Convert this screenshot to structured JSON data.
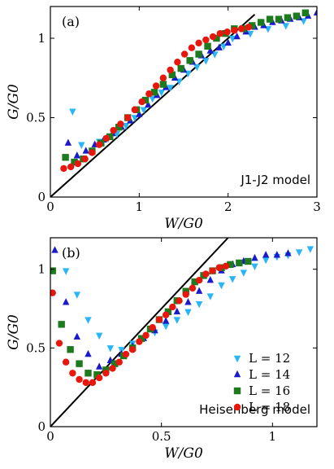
{
  "colors": {
    "L12": "#29b6f6",
    "L14": "#1a1acd",
    "L16": "#1d7a1d",
    "L18": "#e8160c",
    "reference_line": "#000000"
  },
  "legend": {
    "placement": "right, lower half of panel (b)",
    "entries": [
      {
        "key": "L12",
        "marker": "triangle-down",
        "label": "L = 12"
      },
      {
        "key": "L14",
        "marker": "triangle-up",
        "label": "L = 14"
      },
      {
        "key": "L16",
        "marker": "square",
        "label": "L = 16"
      },
      {
        "key": "L18",
        "marker": "circle",
        "label": "L = 18"
      }
    ]
  },
  "chart_data": [
    {
      "type": "scatter",
      "panel_label": "(a)",
      "model_label": "J1-J2 model",
      "xlabel": "W/G0",
      "ylabel": "G/G0",
      "xlim": [
        0,
        3
      ],
      "ylim": [
        0,
        1.2
      ],
      "xticks": [
        "0",
        "1",
        "2",
        "3"
      ],
      "yticks": [
        "0",
        "0.5",
        "1"
      ],
      "xtick_values": [
        0,
        1,
        2,
        3
      ],
      "ytick_values": [
        0,
        0.5,
        1
      ],
      "grid": false,
      "reference_line": {
        "x": [
          0,
          2.3
        ],
        "y": [
          0,
          1.15
        ]
      },
      "series": [
        {
          "key": "L12",
          "marker": "triangle-down",
          "x": [
            0.25,
            0.35,
            0.55,
            0.65,
            0.75,
            0.85,
            0.95,
            1.05,
            1.15,
            1.25,
            1.35,
            1.45,
            1.55,
            1.65,
            1.75,
            1.85,
            1.95,
            2.05,
            2.25,
            2.45,
            2.65,
            2.85
          ],
          "y": [
            0.54,
            0.33,
            0.35,
            0.37,
            0.4,
            0.45,
            0.5,
            0.55,
            0.62,
            0.66,
            0.69,
            0.73,
            0.78,
            0.82,
            0.86,
            0.9,
            0.95,
            1.0,
            1.03,
            1.06,
            1.08,
            1.11
          ]
        },
        {
          "key": "L14",
          "marker": "triangle-up",
          "x": [
            0.2,
            0.3,
            0.4,
            0.5,
            0.6,
            0.7,
            0.8,
            0.9,
            1.0,
            1.1,
            1.2,
            1.3,
            1.4,
            1.5,
            1.6,
            1.7,
            1.8,
            1.9,
            2.0,
            2.1,
            2.2,
            2.3,
            2.4,
            2.5,
            2.6,
            2.7,
            2.8,
            2.9,
            3.0
          ],
          "y": [
            0.34,
            0.26,
            0.29,
            0.33,
            0.36,
            0.4,
            0.44,
            0.48,
            0.52,
            0.58,
            0.64,
            0.69,
            0.75,
            0.8,
            0.85,
            0.89,
            0.92,
            0.94,
            0.97,
            1.01,
            1.04,
            1.07,
            1.08,
            1.1,
            1.11,
            1.12,
            1.13,
            1.14,
            1.16
          ]
        },
        {
          "key": "L16",
          "marker": "square",
          "x": [
            0.17,
            0.27,
            0.37,
            0.47,
            0.57,
            0.67,
            0.77,
            0.87,
            0.97,
            1.07,
            1.17,
            1.27,
            1.37,
            1.47,
            1.57,
            1.67,
            1.77,
            1.87,
            1.97,
            2.07,
            2.17,
            2.27,
            2.37,
            2.47,
            2.57,
            2.67,
            2.77,
            2.87
          ],
          "y": [
            0.25,
            0.22,
            0.24,
            0.29,
            0.34,
            0.38,
            0.44,
            0.5,
            0.55,
            0.61,
            0.66,
            0.71,
            0.77,
            0.81,
            0.86,
            0.9,
            0.95,
            1.0,
            1.03,
            1.06,
            1.06,
            1.08,
            1.1,
            1.12,
            1.12,
            1.13,
            1.14,
            1.16
          ]
        },
        {
          "key": "L18",
          "marker": "circle",
          "x": [
            0.15,
            0.23,
            0.31,
            0.39,
            0.47,
            0.55,
            0.63,
            0.71,
            0.79,
            0.87,
            0.95,
            1.03,
            1.11,
            1.19,
            1.27,
            1.35,
            1.43,
            1.51,
            1.59,
            1.67,
            1.75,
            1.83,
            1.91,
            1.99,
            2.07,
            2.15,
            2.23
          ],
          "y": [
            0.18,
            0.19,
            0.21,
            0.24,
            0.28,
            0.33,
            0.37,
            0.42,
            0.46,
            0.5,
            0.55,
            0.6,
            0.65,
            0.7,
            0.75,
            0.8,
            0.85,
            0.9,
            0.94,
            0.97,
            0.99,
            1.01,
            1.03,
            1.04,
            1.05,
            1.06,
            1.07
          ]
        }
      ]
    },
    {
      "type": "scatter",
      "panel_label": "(b)",
      "model_label": "Heisenberg model",
      "xlabel": "W/G0",
      "ylabel": "G/G0",
      "xlim": [
        0,
        1.2
      ],
      "ylim": [
        0,
        1.2
      ],
      "xticks": [
        "0",
        "0.5",
        "1"
      ],
      "yticks": [
        "0",
        "0.5",
        "1"
      ],
      "xtick_values": [
        0,
        0.5,
        1
      ],
      "ytick_values": [
        0,
        0.5,
        1
      ],
      "grid": false,
      "reference_line": {
        "x": [
          0,
          0.8
        ],
        "y": [
          0,
          1.2
        ]
      },
      "series": [
        {
          "key": "L12",
          "marker": "triangle-down",
          "x": [
            0.07,
            0.12,
            0.17,
            0.22,
            0.27,
            0.32,
            0.37,
            0.42,
            0.47,
            0.52,
            0.57,
            0.62,
            0.67,
            0.72,
            0.77,
            0.82,
            0.87,
            0.92,
            0.97,
            1.02,
            1.07,
            1.12,
            1.17
          ],
          "y": [
            0.99,
            0.84,
            0.68,
            0.58,
            0.5,
            0.49,
            0.53,
            0.56,
            0.6,
            0.64,
            0.68,
            0.73,
            0.78,
            0.83,
            0.9,
            0.94,
            0.98,
            1.02,
            1.06,
            1.08,
            1.09,
            1.11,
            1.13
          ]
        },
        {
          "key": "L14",
          "marker": "triangle-up",
          "x": [
            0.02,
            0.07,
            0.12,
            0.17,
            0.22,
            0.27,
            0.32,
            0.37,
            0.42,
            0.47,
            0.52,
            0.57,
            0.62,
            0.67,
            0.72,
            0.77,
            0.82,
            0.87,
            0.92,
            0.97,
            1.02,
            1.07
          ],
          "y": [
            1.12,
            0.79,
            0.57,
            0.46,
            0.38,
            0.42,
            0.46,
            0.51,
            0.56,
            0.61,
            0.67,
            0.73,
            0.79,
            0.86,
            0.93,
            0.99,
            1.03,
            1.05,
            1.07,
            1.09,
            1.09,
            1.1
          ]
        },
        {
          "key": "L16",
          "marker": "square",
          "x": [
            0.01,
            0.05,
            0.09,
            0.13,
            0.17,
            0.21,
            0.25,
            0.29,
            0.33,
            0.37,
            0.41,
            0.45,
            0.49,
            0.53,
            0.57,
            0.61,
            0.65,
            0.69,
            0.73,
            0.77,
            0.81,
            0.85,
            0.89
          ],
          "y": [
            0.99,
            0.65,
            0.49,
            0.4,
            0.34,
            0.33,
            0.36,
            0.4,
            0.45,
            0.5,
            0.56,
            0.62,
            0.68,
            0.73,
            0.8,
            0.86,
            0.92,
            0.96,
            0.99,
            1.01,
            1.03,
            1.04,
            1.05
          ]
        },
        {
          "key": "L18",
          "marker": "circle",
          "x": [
            0.01,
            0.04,
            0.07,
            0.1,
            0.13,
            0.16,
            0.19,
            0.22,
            0.25,
            0.28,
            0.31,
            0.34,
            0.37,
            0.4,
            0.43,
            0.46,
            0.49,
            0.52,
            0.55,
            0.58,
            0.61,
            0.64,
            0.67,
            0.7,
            0.73,
            0.76,
            0.79
          ],
          "y": [
            0.85,
            0.53,
            0.41,
            0.34,
            0.3,
            0.28,
            0.28,
            0.31,
            0.34,
            0.37,
            0.41,
            0.46,
            0.49,
            0.54,
            0.58,
            0.63,
            0.68,
            0.71,
            0.76,
            0.8,
            0.84,
            0.88,
            0.93,
            0.97,
            0.99,
            1.01,
            1.02
          ]
        }
      ]
    }
  ]
}
